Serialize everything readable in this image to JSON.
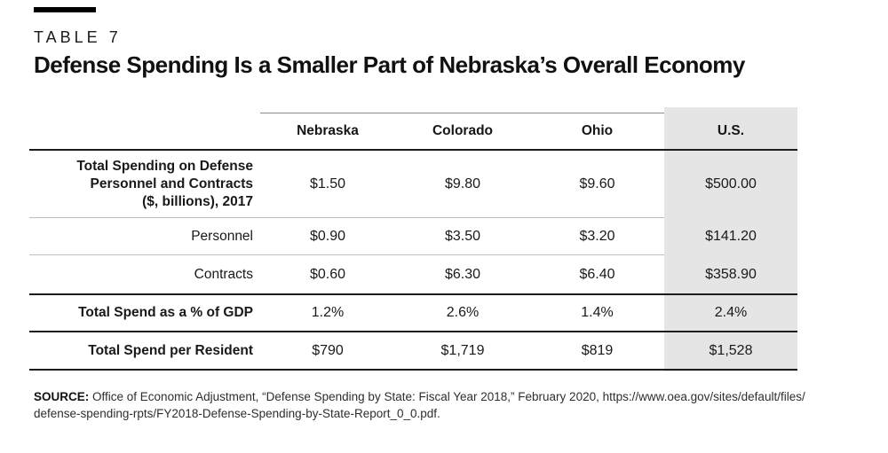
{
  "colors": {
    "page_bg": "#ffffff",
    "text": "#191919",
    "highlight_band": "#e5e5e6",
    "rule_dark": "#1c1c1c",
    "rule_light": "#bfbfbf",
    "rule_medium": "#8a8a8a",
    "marker_bar": "#000000"
  },
  "chart_data": {
    "type": "table",
    "label": "TABLE 7",
    "title": "Defense Spending Is a Smaller Part of Nebraska’s Overall Economy",
    "columns": [
      "Nebraska",
      "Colorado",
      "Ohio",
      "U.S."
    ],
    "highlighted_column": "U.S.",
    "rows": [
      {
        "label": "Total Spending on Defense Personnel and Contracts ($, billions), 2017",
        "label_lines": [
          "Total Spending on Defense",
          "Personnel and Contracts",
          "($, billions), 2017"
        ],
        "bold_label": true,
        "values": [
          "$1.50",
          "$9.80",
          "$9.60",
          "$500.00"
        ]
      },
      {
        "label": "Personnel",
        "label_lines": [
          "Personnel"
        ],
        "bold_label": false,
        "values": [
          "$0.90",
          "$3.50",
          "$3.20",
          "$141.20"
        ]
      },
      {
        "label": "Contracts",
        "label_lines": [
          "Contracts"
        ],
        "bold_label": false,
        "values": [
          "$0.60",
          "$6.30",
          "$6.40",
          "$358.90"
        ]
      },
      {
        "label": "Total Spend as a % of GDP",
        "label_lines": [
          "Total Spend as a % of GDP"
        ],
        "bold_label": true,
        "values": [
          "1.2%",
          "2.6%",
          "1.4%",
          "2.4%"
        ]
      },
      {
        "label": "Total Spend per Resident",
        "label_lines": [
          "Total Spend per Resident"
        ],
        "bold_label": true,
        "values": [
          "$790",
          "$1,719",
          "$819",
          "$1,528"
        ]
      }
    ]
  },
  "source": {
    "prefix": "SOURCE:",
    "lines": [
      " Office of Economic Adjustment, “Defense Spending by State: Fiscal Year 2018,” February 2020, https://www.oea.gov/sites/default/files/",
      "defense-spending-rpts/FY2018-Defense-Spending-by-State-Report_0_0.pdf."
    ]
  }
}
